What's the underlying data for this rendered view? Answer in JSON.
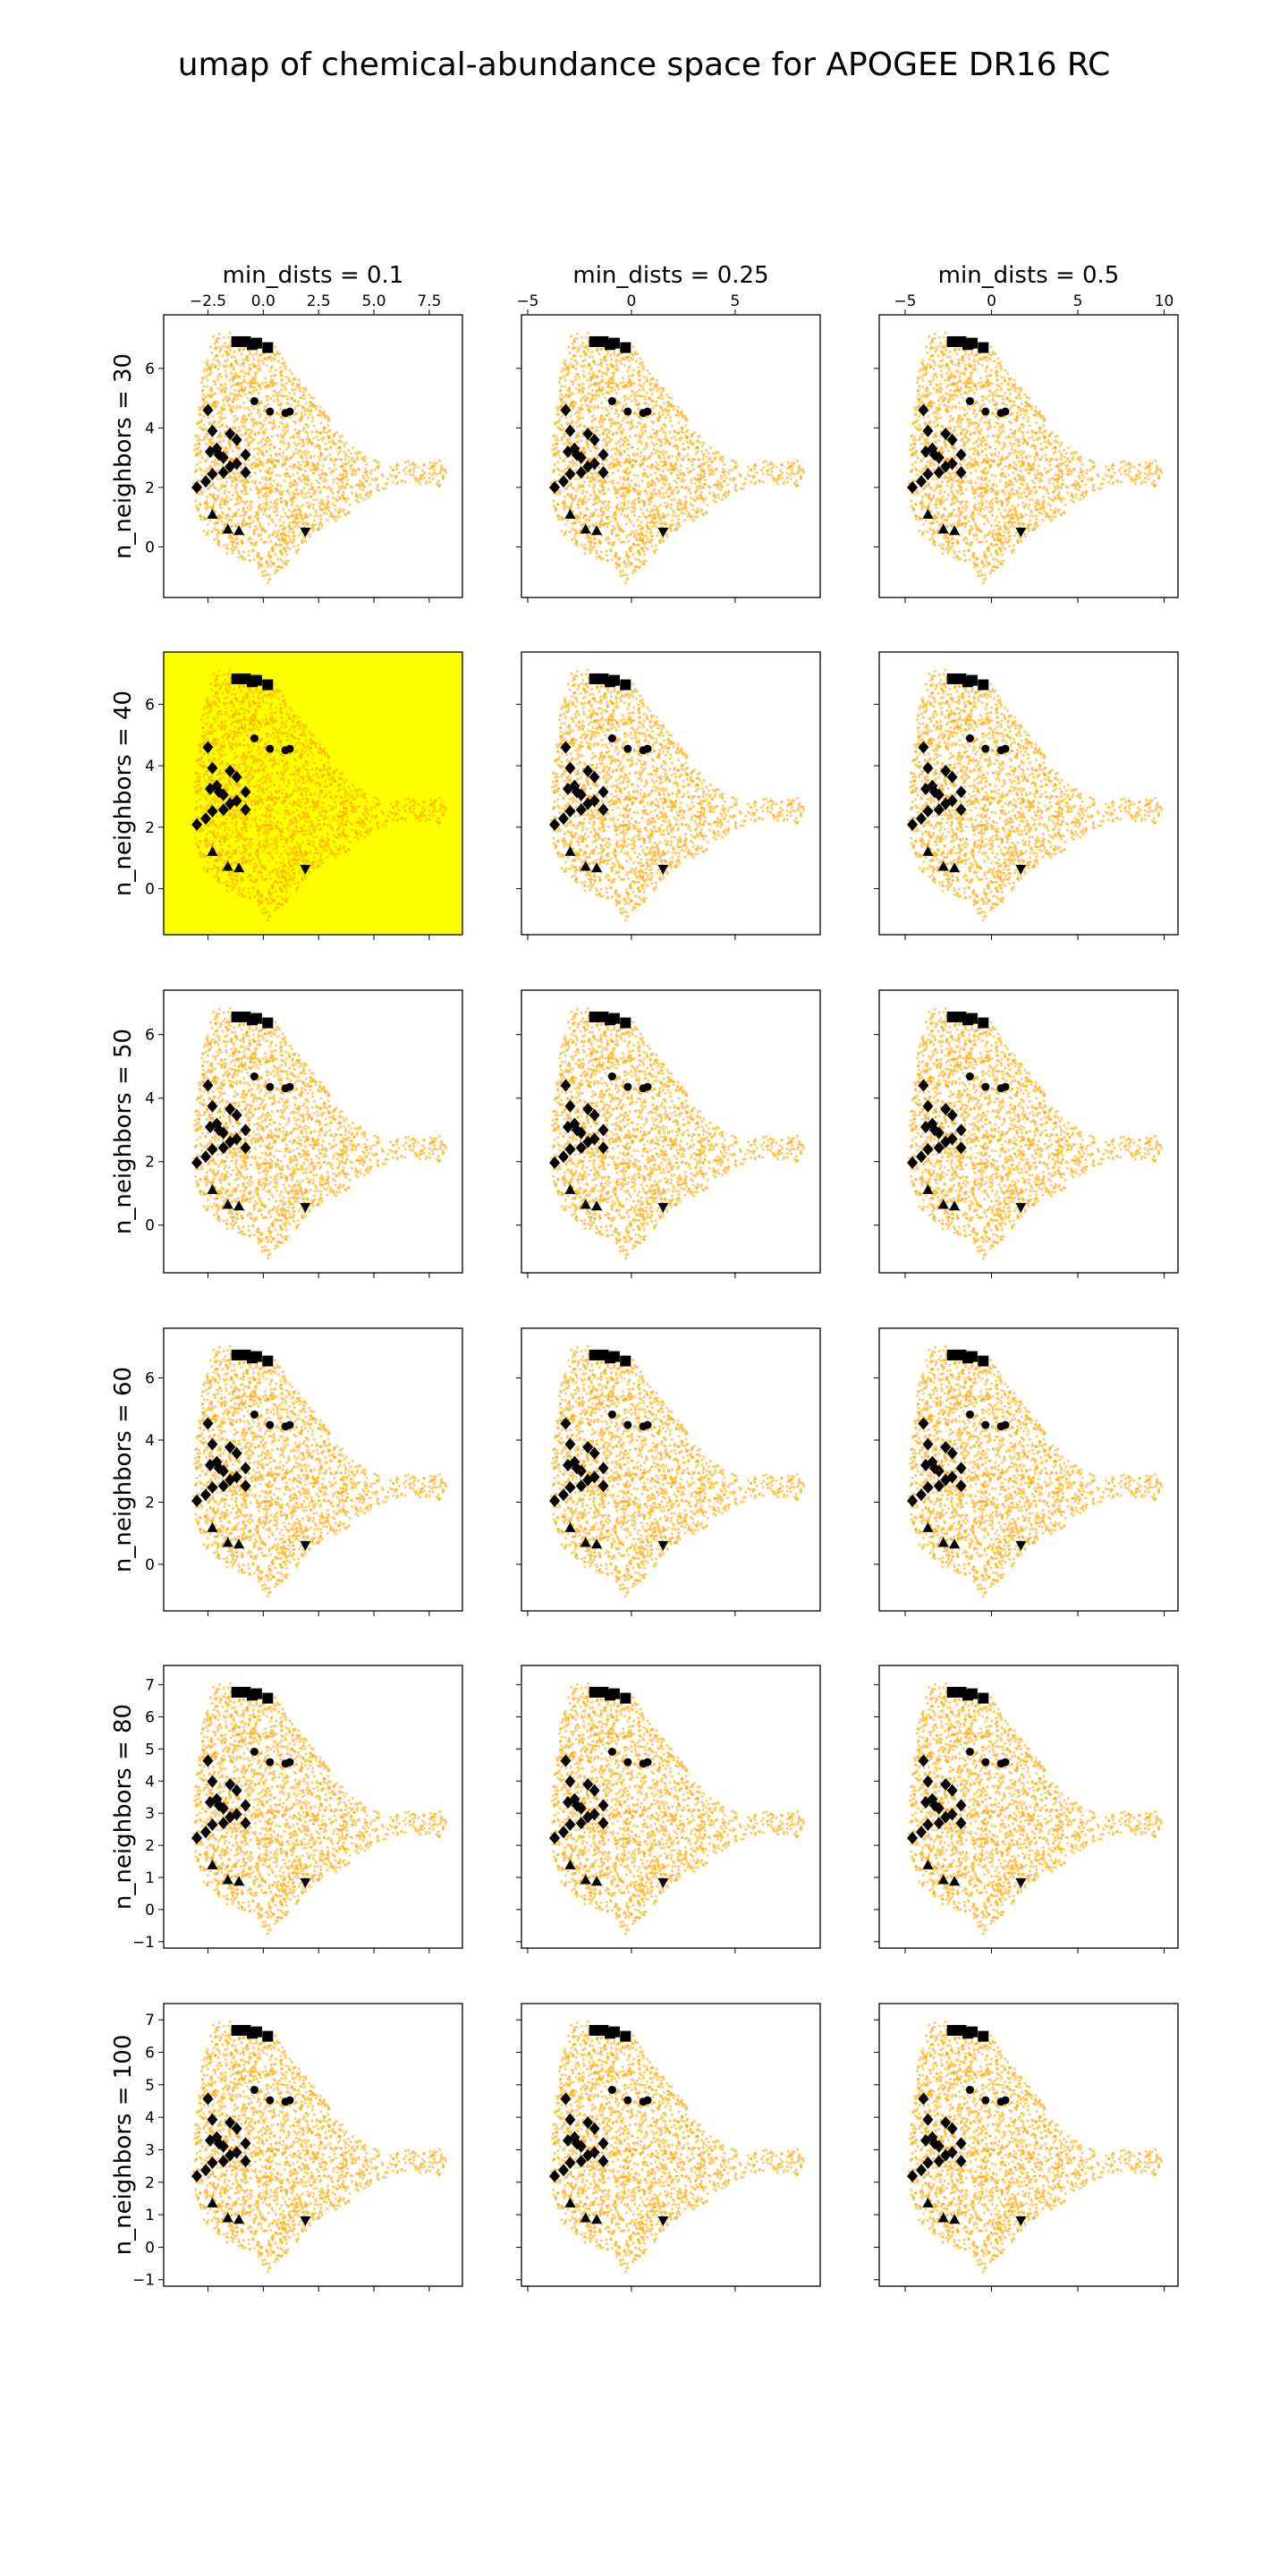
{
  "figure": {
    "title": "umap of chemical-abundance space for APOGEE DR16 RC"
  },
  "chart_data": {
    "type": "scatter",
    "layout": "grid of 6 rows x 3 columns",
    "columns": [
      {
        "title": "min_dists = 0.1",
        "xlim": [
          -4.5,
          9.0
        ],
        "xticks": [
          -2.5,
          0.0,
          2.5,
          5.0,
          7.5
        ],
        "xtick_labels": [
          "−2.5",
          "0.0",
          "2.5",
          "5.0",
          "7.5"
        ]
      },
      {
        "title": "min_dists = 0.25",
        "xlim": [
          -5.3,
          9.1
        ],
        "xticks": [
          -5,
          0,
          5
        ],
        "xtick_labels": [
          "−5",
          "0",
          "5"
        ]
      },
      {
        "title": "min_dists = 0.5",
        "xlim": [
          -6.5,
          10.8
        ],
        "xticks": [
          -5,
          0,
          5,
          10
        ],
        "xtick_labels": [
          "−5",
          "0",
          "5",
          "10"
        ]
      }
    ],
    "rows": [
      {
        "label": "n_neighbors = 30",
        "ylim": [
          -1.7,
          7.8
        ],
        "yticks": [
          0,
          2,
          4,
          6
        ],
        "ytick_labels": [
          "0",
          "2",
          "4",
          "6"
        ]
      },
      {
        "label": "n_neighbors = 40",
        "ylim": [
          -1.5,
          7.7
        ],
        "yticks": [
          0,
          2,
          4,
          6
        ],
        "ytick_labels": [
          "0",
          "2",
          "4",
          "6"
        ]
      },
      {
        "label": "n_neighbors = 50",
        "ylim": [
          -1.5,
          7.4
        ],
        "yticks": [
          0,
          2,
          4,
          6
        ],
        "ytick_labels": [
          "0",
          "2",
          "4",
          "6"
        ]
      },
      {
        "label": "n_neighbors = 60",
        "ylim": [
          -1.5,
          7.6
        ],
        "yticks": [
          0,
          2,
          4,
          6
        ],
        "ytick_labels": [
          "0",
          "2",
          "4",
          "6"
        ]
      },
      {
        "label": "n_neighbors = 80",
        "ylim": [
          -1.2,
          7.6
        ],
        "yticks": [
          -1,
          0,
          1,
          2,
          3,
          4,
          5,
          6,
          7
        ],
        "ytick_labels": [
          "−1",
          "0",
          "1",
          "2",
          "3",
          "4",
          "5",
          "6",
          "7"
        ]
      },
      {
        "label": "n_neighbors = 100",
        "ylim": [
          -1.2,
          7.5
        ],
        "yticks": [
          -1,
          0,
          1,
          2,
          3,
          4,
          5,
          6,
          7
        ],
        "ytick_labels": [
          "−1",
          "0",
          "1",
          "2",
          "3",
          "4",
          "5",
          "6",
          "7"
        ]
      }
    ],
    "tick_labels_shown_on": "top row (x) and first column (y)",
    "highlighted_panel": {
      "row": 1,
      "col": 0,
      "background_color": "#ffff00"
    },
    "colors": {
      "population": "#ffa500",
      "markers": "#000000"
    },
    "population": {
      "description": "dense orange point cloud in every panel",
      "representative_shape_panel_row0_col0": [
        [
          -2.3,
          7.2
        ],
        [
          -1.5,
          7.2
        ],
        [
          0.5,
          6.8
        ],
        [
          1.2,
          6.0
        ],
        [
          2.5,
          4.8
        ],
        [
          4.0,
          3.4
        ],
        [
          5.5,
          2.7
        ],
        [
          6.7,
          2.9
        ],
        [
          8.0,
          2.9
        ],
        [
          8.3,
          2.5
        ],
        [
          8.0,
          2.0
        ],
        [
          6.5,
          2.2
        ],
        [
          5.0,
          1.8
        ],
        [
          3.5,
          0.9
        ],
        [
          2.0,
          0.2
        ],
        [
          1.0,
          -0.7
        ],
        [
          0.2,
          -1.3
        ],
        [
          -0.5,
          -0.6
        ],
        [
          -1.7,
          -0.2
        ],
        [
          -2.7,
          0.5
        ],
        [
          -3.3,
          1.8
        ],
        [
          -3.1,
          3.5
        ],
        [
          -2.8,
          5.5
        ],
        [
          -2.5,
          6.6
        ]
      ]
    },
    "marker_groups": [
      {
        "marker": "square",
        "points": [
          [
            -1.2,
            6.9
          ],
          [
            -0.8,
            6.9
          ],
          [
            -0.5,
            6.8
          ],
          [
            -0.3,
            6.85
          ],
          [
            0.2,
            6.7
          ]
        ]
      },
      {
        "marker": "circle",
        "points": [
          [
            -0.4,
            4.9
          ],
          [
            0.3,
            4.55
          ],
          [
            1.0,
            4.5
          ],
          [
            1.2,
            4.55
          ]
        ]
      },
      {
        "marker": "diamond",
        "points": [
          [
            -2.5,
            4.6
          ],
          [
            -2.3,
            3.9
          ],
          [
            -2.4,
            3.2
          ],
          [
            -2.0,
            3.1
          ],
          [
            -1.8,
            3.0
          ],
          [
            -1.5,
            2.7
          ],
          [
            -1.8,
            2.5
          ],
          [
            -2.3,
            2.45
          ],
          [
            -2.1,
            3.3
          ],
          [
            -1.5,
            3.8
          ],
          [
            -1.2,
            3.6
          ],
          [
            -1.2,
            2.8
          ],
          [
            -0.8,
            3.1
          ],
          [
            -0.8,
            2.5
          ],
          [
            -3.0,
            2.0
          ],
          [
            -2.6,
            2.2
          ]
        ]
      },
      {
        "marker": "triangle-up",
        "points": [
          [
            -2.3,
            1.1
          ],
          [
            -1.6,
            0.6
          ],
          [
            -1.1,
            0.55
          ]
        ]
      },
      {
        "marker": "triangle-down",
        "points": [
          [
            1.9,
            0.5
          ]
        ]
      }
    ]
  }
}
